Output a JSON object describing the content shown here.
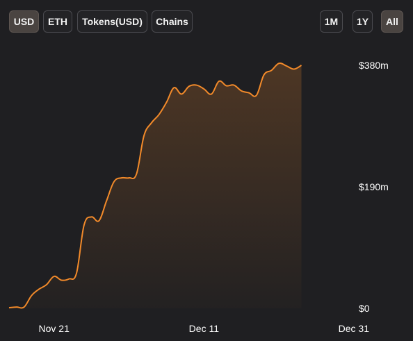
{
  "tabs": {
    "left": [
      {
        "label": "USD",
        "active": true
      },
      {
        "label": "ETH",
        "active": false
      },
      {
        "label": "Tokens(USD)",
        "active": false
      },
      {
        "label": "Chains",
        "active": false
      }
    ],
    "right": [
      {
        "label": "1M",
        "active": false
      },
      {
        "label": "1Y",
        "active": false
      },
      {
        "label": "All",
        "active": true
      }
    ]
  },
  "colors": {
    "background": "#1f1f22",
    "line": "#f28a2a",
    "fill": "#f28a2a"
  },
  "chart_data": {
    "type": "area",
    "title": "",
    "xlabel": "",
    "ylabel": "",
    "ylim": [
      0,
      380
    ],
    "y_unit": "millions USD",
    "y_ticks": [
      {
        "value": 0,
        "label": "$0"
      },
      {
        "value": 190,
        "label": "$190m"
      },
      {
        "value": 380,
        "label": "$380m"
      }
    ],
    "x_ticks": [
      {
        "date": "2024-11-21",
        "label": "Nov 21"
      },
      {
        "date": "2024-12-11",
        "label": "Dec 11"
      },
      {
        "date": "2024-12-31",
        "label": "Dec 31"
      }
    ],
    "grid": false,
    "legend": "none",
    "series": [
      {
        "points": [
          [
            "2024-11-15",
            1
          ],
          [
            "2024-11-16",
            2
          ],
          [
            "2024-11-17",
            2
          ],
          [
            "2024-11-18",
            20
          ],
          [
            "2024-11-19",
            30
          ],
          [
            "2024-11-20",
            37
          ],
          [
            "2024-11-21",
            50
          ],
          [
            "2024-11-22",
            44
          ],
          [
            "2024-11-23",
            46
          ],
          [
            "2024-11-24",
            55
          ],
          [
            "2024-11-25",
            130
          ],
          [
            "2024-11-26",
            143
          ],
          [
            "2024-11-27",
            137
          ],
          [
            "2024-11-28",
            168
          ],
          [
            "2024-11-29",
            198
          ],
          [
            "2024-11-30",
            204
          ],
          [
            "2024-12-01",
            204
          ],
          [
            "2024-12-02",
            210
          ],
          [
            "2024-12-03",
            270
          ],
          [
            "2024-12-04",
            290
          ],
          [
            "2024-12-05",
            303
          ],
          [
            "2024-12-06",
            322
          ],
          [
            "2024-12-07",
            345
          ],
          [
            "2024-12-08",
            335
          ],
          [
            "2024-12-09",
            347
          ],
          [
            "2024-12-10",
            349
          ],
          [
            "2024-12-11",
            343
          ],
          [
            "2024-12-12",
            335
          ],
          [
            "2024-12-13",
            355
          ],
          [
            "2024-12-14",
            348
          ],
          [
            "2024-12-15",
            349
          ],
          [
            "2024-12-16",
            340
          ],
          [
            "2024-12-17",
            337
          ],
          [
            "2024-12-18",
            333
          ],
          [
            "2024-12-19",
            365
          ],
          [
            "2024-12-20",
            372
          ],
          [
            "2024-12-21",
            383
          ],
          [
            "2024-12-22",
            379
          ],
          [
            "2024-12-23",
            374
          ],
          [
            "2024-12-24",
            380
          ]
        ]
      }
    ]
  }
}
